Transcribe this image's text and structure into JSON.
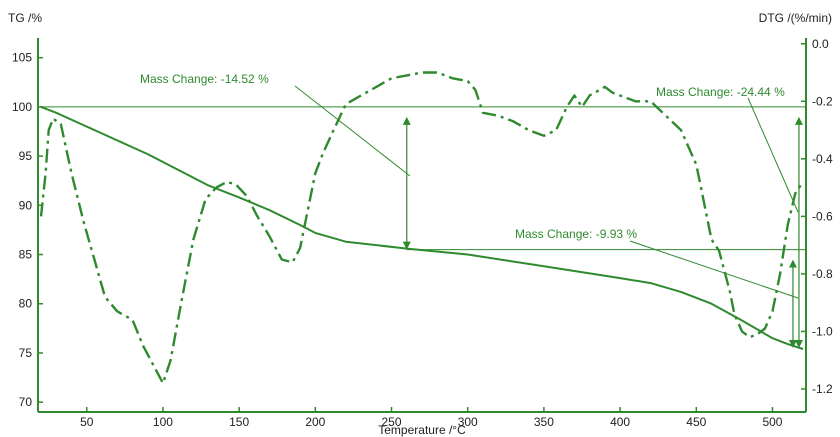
{
  "chart_data": {
    "type": "line",
    "ylabel_left": "TG /%",
    "ylabel_right": "DTG /(%/min)",
    "xlabel": "Temperature /°C",
    "xlim": [
      18,
      522
    ],
    "ylim_left": [
      69,
      107
    ],
    "ylim_right": [
      -1.28,
      0.02
    ],
    "x_ticks": [
      "50",
      "100",
      "150",
      "200",
      "250",
      "300",
      "350",
      "400",
      "450",
      "500"
    ],
    "y_ticks_left": [
      "70",
      "75",
      "80",
      "85",
      "90",
      "95",
      "100",
      "105"
    ],
    "y_ticks_right": [
      "0.0",
      "-0.2",
      "-0.4",
      "-0.6",
      "-0.8",
      "-1.0",
      "-1.2"
    ],
    "grid": false,
    "colors": {
      "line": "#2f8a2f",
      "axis": "#2f8a2f"
    },
    "series": [
      {
        "style": "solid",
        "axis": "left",
        "x": [
          20,
          30,
          50,
          70,
          90,
          110,
          130,
          150,
          170,
          190,
          200,
          220,
          260,
          300,
          350,
          400,
          420,
          440,
          460,
          480,
          500,
          510,
          520
        ],
        "y": [
          100,
          99.4,
          98,
          96.6,
          95.2,
          93.6,
          92,
          90.8,
          89.5,
          88,
          87.2,
          86.3,
          85.6,
          85.0,
          83.8,
          82.6,
          82.1,
          81.2,
          80.0,
          78.3,
          76.5,
          75.9,
          75.4
        ]
      },
      {
        "style": "dash-dot",
        "axis": "right",
        "x": [
          20,
          23,
          25,
          28,
          33,
          40,
          48,
          55,
          62,
          70,
          80,
          87,
          95,
          100,
          105,
          112,
          120,
          128,
          135,
          142,
          148,
          155,
          162,
          170,
          178,
          185,
          190,
          195,
          200,
          205,
          212,
          220,
          230,
          240,
          250,
          260,
          270,
          280,
          290,
          300,
          305,
          310,
          320,
          330,
          340,
          350,
          358,
          365,
          370,
          375,
          380,
          390,
          395,
          400,
          410,
          420,
          430,
          440,
          450,
          455,
          460,
          465,
          468,
          472,
          475,
          480,
          485,
          490,
          495,
          500,
          505,
          510,
          515,
          520
        ],
        "y": [
          -0.6,
          -0.45,
          -0.3,
          -0.26,
          -0.28,
          -0.45,
          -0.62,
          -0.75,
          -0.88,
          -0.93,
          -0.96,
          -1.05,
          -1.13,
          -1.18,
          -1.1,
          -0.9,
          -0.68,
          -0.54,
          -0.5,
          -0.48,
          -0.49,
          -0.53,
          -0.6,
          -0.67,
          -0.75,
          -0.76,
          -0.71,
          -0.58,
          -0.45,
          -0.38,
          -0.3,
          -0.21,
          -0.18,
          -0.15,
          -0.12,
          -0.11,
          -0.1,
          -0.1,
          -0.12,
          -0.13,
          -0.16,
          -0.24,
          -0.25,
          -0.27,
          -0.3,
          -0.32,
          -0.3,
          -0.22,
          -0.18,
          -0.22,
          -0.18,
          -0.15,
          -0.17,
          -0.18,
          -0.2,
          -0.2,
          -0.25,
          -0.3,
          -0.42,
          -0.55,
          -0.68,
          -0.72,
          -0.78,
          -0.86,
          -0.94,
          -1.0,
          -1.02,
          -1.01,
          -0.99,
          -0.93,
          -0.8,
          -0.63,
          -0.52,
          -0.48
        ]
      }
    ],
    "annotations": [
      {
        "text": "Mass Change: -14.52 %",
        "from": [
          260,
          100
        ],
        "to": [
          260,
          85.5
        ]
      },
      {
        "text": "Mass Change: -24.44 %",
        "from": [
          520,
          100
        ],
        "to": [
          520,
          75.5
        ]
      },
      {
        "text": "Mass Change: -9.93 %",
        "from": [
          520,
          85.5
        ],
        "to": [
          520,
          75.5
        ]
      }
    ]
  }
}
